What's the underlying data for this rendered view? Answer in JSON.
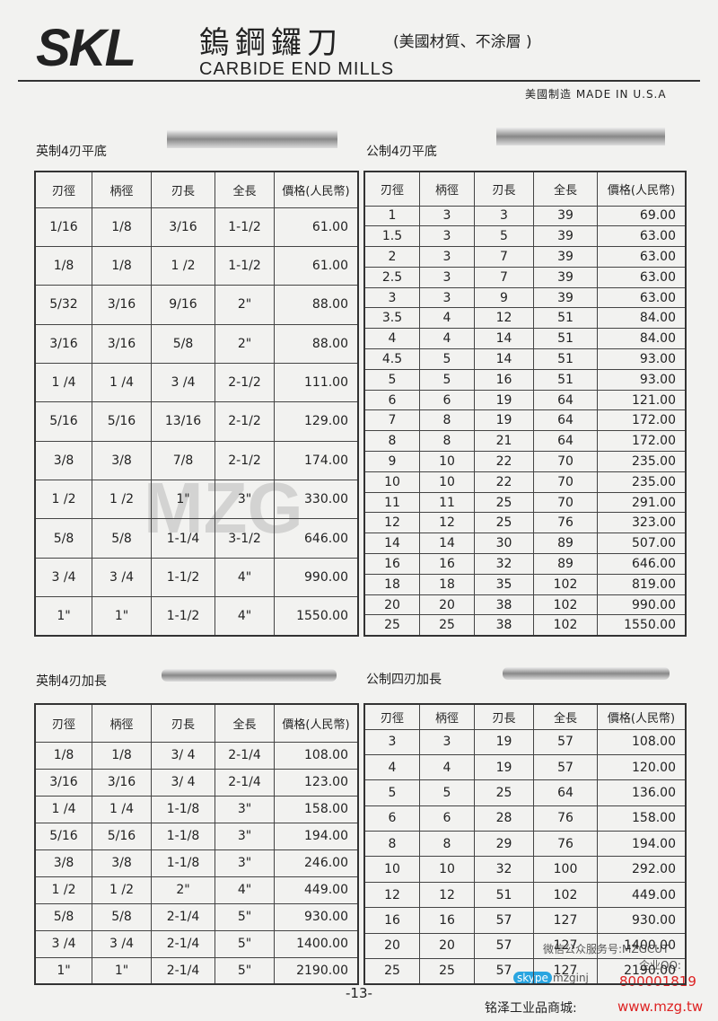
{
  "header": {
    "logo": "SKL",
    "title": "鎢鋼鑼刀",
    "title_note": "(美國材質、不涂層 )",
    "subtitle": "CARBIDE END MILLS",
    "origin": "美國制造 MADE IN U.S.A"
  },
  "tables": [
    {
      "title": "英制4刃平底",
      "headers": [
        "刃徑",
        "柄徑",
        "刃長",
        "全長",
        "價格(人民幣)"
      ],
      "rows": [
        [
          "1/16",
          "1/8",
          "3/16",
          "1-1/2",
          "61.00"
        ],
        [
          "1/8",
          "1/8",
          "1 /2",
          "1-1/2",
          "61.00"
        ],
        [
          "5/32",
          "3/16",
          "9/16",
          "2\"",
          "88.00"
        ],
        [
          "3/16",
          "3/16",
          "5/8",
          "2\"",
          "88.00"
        ],
        [
          "1 /4",
          "1 /4",
          "3 /4",
          "2-1/2",
          "111.00"
        ],
        [
          "5/16",
          "5/16",
          "13/16",
          "2-1/2",
          "129.00"
        ],
        [
          "3/8",
          "3/8",
          "7/8",
          "2-1/2",
          "174.00"
        ],
        [
          "1 /2",
          "1 /2",
          "1\"",
          "3\"",
          "330.00"
        ],
        [
          "5/8",
          "5/8",
          "1-1/4",
          "3-1/2",
          "646.00"
        ],
        [
          "3 /4",
          "3 /4",
          "1-1/2",
          "4\"",
          "990.00"
        ],
        [
          "1\"",
          "1\"",
          "1-1/2",
          "4\"",
          "1550.00"
        ]
      ]
    },
    {
      "title": "公制4刃平底",
      "headers": [
        "刃徑",
        "柄徑",
        "刃長",
        "全長",
        "價格(人民幣)"
      ],
      "rows": [
        [
          "1",
          "3",
          "3",
          "39",
          "69.00"
        ],
        [
          "1.5",
          "3",
          "5",
          "39",
          "63.00"
        ],
        [
          "2",
          "3",
          "7",
          "39",
          "63.00"
        ],
        [
          "2.5",
          "3",
          "7",
          "39",
          "63.00"
        ],
        [
          "3",
          "3",
          "9",
          "39",
          "63.00"
        ],
        [
          "3.5",
          "4",
          "12",
          "51",
          "84.00"
        ],
        [
          "4",
          "4",
          "14",
          "51",
          "84.00"
        ],
        [
          "4.5",
          "5",
          "14",
          "51",
          "93.00"
        ],
        [
          "5",
          "5",
          "16",
          "51",
          "93.00"
        ],
        [
          "6",
          "6",
          "19",
          "64",
          "121.00"
        ],
        [
          "7",
          "8",
          "19",
          "64",
          "172.00"
        ],
        [
          "8",
          "8",
          "21",
          "64",
          "172.00"
        ],
        [
          "9",
          "10",
          "22",
          "70",
          "235.00"
        ],
        [
          "10",
          "10",
          "22",
          "70",
          "235.00"
        ],
        [
          "11",
          "11",
          "25",
          "70",
          "291.00"
        ],
        [
          "12",
          "12",
          "25",
          "76",
          "323.00"
        ],
        [
          "14",
          "14",
          "30",
          "89",
          "507.00"
        ],
        [
          "16",
          "16",
          "32",
          "89",
          "646.00"
        ],
        [
          "18",
          "18",
          "35",
          "102",
          "819.00"
        ],
        [
          "20",
          "20",
          "38",
          "102",
          "990.00"
        ],
        [
          "25",
          "25",
          "38",
          "102",
          "1550.00"
        ]
      ]
    },
    {
      "title": "英制4刃加長",
      "headers": [
        "刃徑",
        "柄徑",
        "刃長",
        "全長",
        "價格(人民幣)"
      ],
      "rows": [
        [
          "1/8",
          "1/8",
          "3/ 4",
          "2-1/4",
          "108.00"
        ],
        [
          "3/16",
          "3/16",
          "3/ 4",
          "2-1/4",
          "123.00"
        ],
        [
          "1 /4",
          "1 /4",
          "1-1/8",
          "3\"",
          "158.00"
        ],
        [
          "5/16",
          "5/16",
          "1-1/8",
          "3\"",
          "194.00"
        ],
        [
          "3/8",
          "3/8",
          "1-1/8",
          "3\"",
          "246.00"
        ],
        [
          "1 /2",
          "1 /2",
          "2\"",
          "4\"",
          "449.00"
        ],
        [
          "5/8",
          "5/8",
          "2-1/4",
          "5\"",
          "930.00"
        ],
        [
          "3 /4",
          "3 /4",
          "2-1/4",
          "5\"",
          "1400.00"
        ],
        [
          "1\"",
          "1\"",
          "2-1/4",
          "5\"",
          "2190.00"
        ]
      ]
    },
    {
      "title": "公制四刃加長",
      "headers": [
        "刃徑",
        "柄徑",
        "刃長",
        "全長",
        "價格(人民幣)"
      ],
      "rows": [
        [
          "3",
          "3",
          "19",
          "57",
          "108.00"
        ],
        [
          "4",
          "4",
          "19",
          "57",
          "120.00"
        ],
        [
          "5",
          "5",
          "25",
          "64",
          "136.00"
        ],
        [
          "6",
          "6",
          "28",
          "76",
          "158.00"
        ],
        [
          "8",
          "8",
          "29",
          "76",
          "194.00"
        ],
        [
          "10",
          "10",
          "32",
          "100",
          "292.00"
        ],
        [
          "12",
          "12",
          "51",
          "102",
          "449.00"
        ],
        [
          "16",
          "16",
          "57",
          "127",
          "930.00"
        ],
        [
          "20",
          "20",
          "57",
          "127",
          "1400.00"
        ],
        [
          "25",
          "25",
          "57",
          "127",
          "2190.00"
        ]
      ]
    }
  ],
  "watermark": "MZG",
  "footer": {
    "page": "-13-",
    "wechat": "微信公众服务号:MZGCUT",
    "qq_label": "企业QQ:",
    "qq": "800001819",
    "skype": "skype",
    "skype_id": "mzginj",
    "mall": "铭泽工业品商城:",
    "url": "www.mzg.tw"
  }
}
